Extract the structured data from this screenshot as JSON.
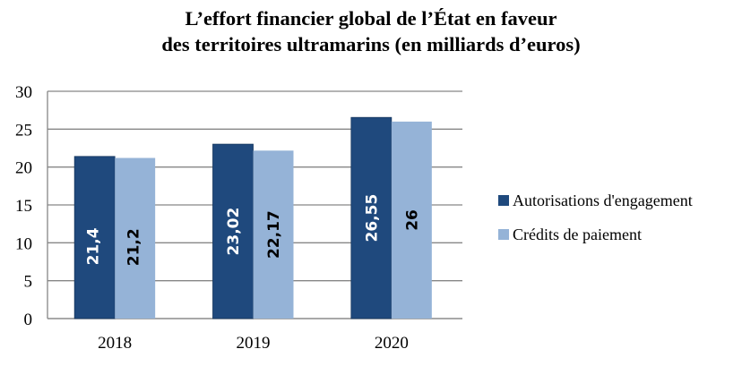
{
  "chart_data": {
    "type": "bar",
    "title_line1": "L’effort financier global de l’État en faveur",
    "title_line2": "des territoires ultramarins (en milliards d’euros)",
    "categories": [
      "2018",
      "2019",
      "2020"
    ],
    "series": [
      {
        "name": "Autorisations d'engagement",
        "values": [
          21.4,
          23.02,
          26.55
        ],
        "labels": [
          "21,4",
          "23,02",
          "26,55"
        ],
        "color": "#1f497d",
        "label_color": "#ffffff"
      },
      {
        "name": "Crédits de paiement",
        "values": [
          21.2,
          22.17,
          26
        ],
        "labels": [
          "21,2",
          "22,17",
          "26"
        ],
        "color": "#95b3d7",
        "label_color": "#000000"
      }
    ],
    "xlabel": "",
    "ylabel": "",
    "ylim": [
      0,
      30
    ],
    "yticks": [
      "0",
      "5",
      "10",
      "15",
      "20",
      "25",
      "30"
    ],
    "grid": true,
    "legend_position": "right"
  }
}
